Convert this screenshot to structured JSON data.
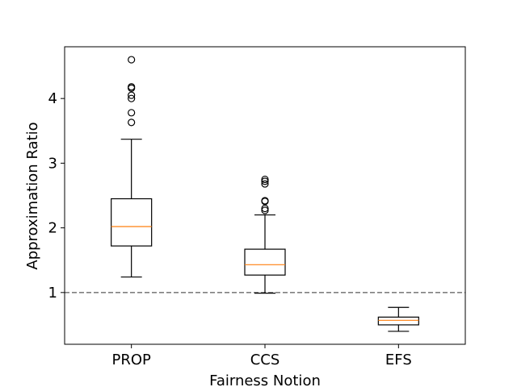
{
  "chart_data": {
    "type": "box",
    "xlabel": "Fairness Notion",
    "ylabel": "Approximation Ratio",
    "categories": [
      "PROP",
      "CCS",
      "EFS"
    ],
    "ylim": [
      0.2,
      4.8
    ],
    "yticks": [
      1,
      2,
      3,
      4
    ],
    "grid": false,
    "reference_line": {
      "y": 1.0,
      "style": "dashed",
      "color": "#808080"
    },
    "boxes": [
      {
        "label": "PROP",
        "whisker_low": 1.24,
        "q1": 1.72,
        "median": 2.02,
        "q3": 2.45,
        "whisker_high": 3.37,
        "outliers": [
          3.63,
          3.78,
          4.0,
          4.05,
          4.16,
          4.18,
          4.6
        ]
      },
      {
        "label": "CCS",
        "whisker_low": 0.99,
        "q1": 1.27,
        "median": 1.43,
        "q3": 1.67,
        "whisker_high": 2.2,
        "outliers": [
          2.27,
          2.3,
          2.41,
          2.42,
          2.68,
          2.72,
          2.75
        ]
      },
      {
        "label": "EFS",
        "whisker_low": 0.4,
        "q1": 0.5,
        "median": 0.57,
        "q3": 0.62,
        "whisker_high": 0.77,
        "outliers": []
      }
    ],
    "colors": {
      "box": "#000000",
      "median": "#ff7f0e",
      "outlier": "#000000",
      "axes": "#000000"
    }
  }
}
